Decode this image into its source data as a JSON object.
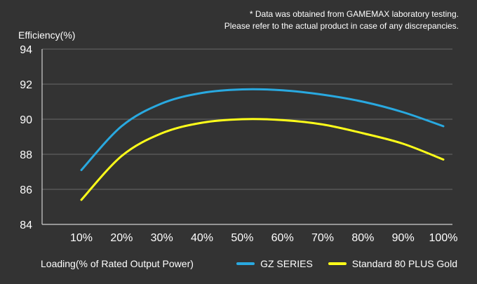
{
  "disclaimer": {
    "line1": "* Data was obtained from GAMEMAX laboratory testing.",
    "line2": "Please refer to the actual product in case of any discrepancies."
  },
  "chart_data": {
    "type": "line",
    "title": "",
    "ylabel": "Efficiency(%)",
    "xlabel": "Loading(% of Rated Output Power)",
    "ylim": [
      84,
      94
    ],
    "yticks": [
      84,
      86,
      88,
      90,
      92,
      94
    ],
    "ytick_labels": [
      "84",
      "86",
      "88",
      "90",
      "92",
      "94"
    ],
    "x": [
      10,
      20,
      30,
      40,
      50,
      60,
      70,
      80,
      90,
      100
    ],
    "categories": [
      "10%",
      "20%",
      "30%",
      "40%",
      "50%",
      "60%",
      "70%",
      "80%",
      "90%",
      "100%"
    ],
    "grid": true,
    "legend_position": "bottom-right",
    "series": [
      {
        "name": "GZ SERIES",
        "color": "#29a9e0",
        "values": [
          87.1,
          89.6,
          90.9,
          91.5,
          91.7,
          91.65,
          91.4,
          91.0,
          90.4,
          89.6
        ]
      },
      {
        "name": "Standard 80 PLUS Gold",
        "color": "#ffff1a",
        "values": [
          85.4,
          87.9,
          89.2,
          89.8,
          90.0,
          89.95,
          89.7,
          89.2,
          88.6,
          87.7
        ]
      }
    ]
  }
}
